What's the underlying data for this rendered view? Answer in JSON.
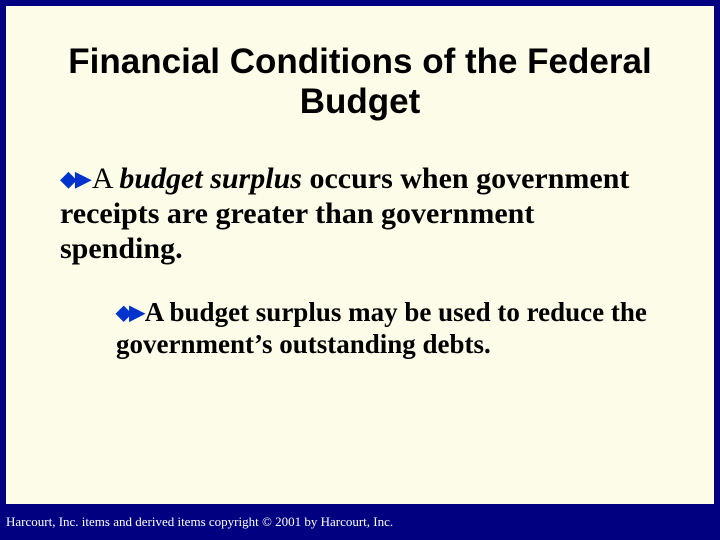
{
  "colors": {
    "outer_background": "#000080",
    "panel_background": "#fcfce8",
    "text_color": "#000000",
    "bullet_arrow_color": "#0033cc",
    "footer_text_color": "#ffffff"
  },
  "typography": {
    "title_font": "Arial",
    "title_size_pt": 26,
    "title_weight": "bold",
    "body_font": "Times New Roman",
    "body_size_pt": 22,
    "sub_body_size_pt": 20,
    "footer_size_pt": 10
  },
  "title": "Financial Conditions of the Federal Budget",
  "bullets": {
    "level1": {
      "prefix_glyph": "◆▶",
      "run1": "A ",
      "term": "budget surplus ",
      "run2": "occurs when government receipts are greater than government spending."
    },
    "level2": {
      "prefix_glyph": "◆▶",
      "text": "A budget surplus may be used to reduce the government’s outstanding debts."
    }
  },
  "footer": "Harcourt, Inc. items and derived items copyright © 2001 by Harcourt, Inc."
}
